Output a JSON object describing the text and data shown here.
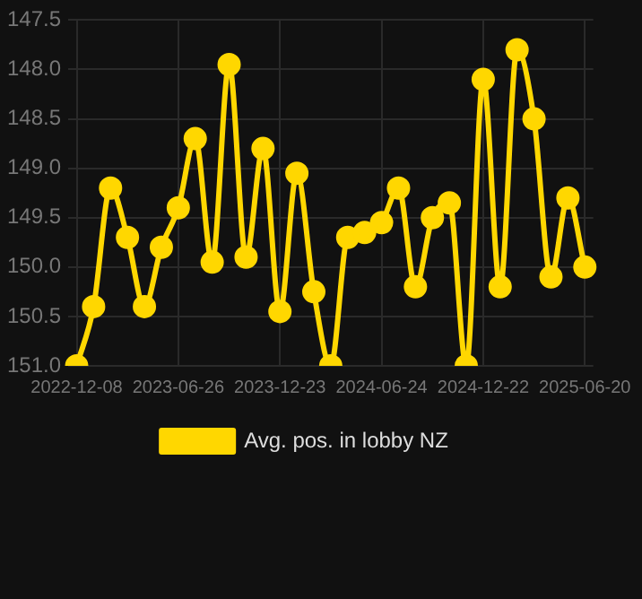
{
  "chart_data": {
    "type": "line",
    "categories": [
      "2022-12-08",
      null,
      null,
      null,
      null,
      null,
      "2023-06-26",
      null,
      null,
      null,
      null,
      null,
      "2023-12-23",
      null,
      null,
      null,
      null,
      null,
      "2024-06-24",
      null,
      null,
      null,
      null,
      null,
      "2024-12-22",
      null,
      null,
      null,
      null,
      null,
      "2025-06-20"
    ],
    "series": [
      {
        "name": "Avg. pos. in lobby NZ",
        "color": "#ffd700",
        "values": [
          151.0,
          150.4,
          149.2,
          149.7,
          150.4,
          149.8,
          149.4,
          148.7,
          149.95,
          147.95,
          149.9,
          148.8,
          150.45,
          149.05,
          150.25,
          151.0,
          149.7,
          149.65,
          149.55,
          149.2,
          150.2,
          149.5,
          149.35,
          151.0,
          148.1,
          150.2,
          147.8,
          148.5,
          150.1,
          149.3,
          150.0
        ]
      }
    ],
    "ylim": [
      151.0,
      147.5
    ],
    "yticks": [
      {
        "value": 147.5,
        "label": "147.5"
      },
      {
        "value": 148,
        "label": "148.0"
      },
      {
        "value": 148.5,
        "label": "148.5"
      },
      {
        "value": 149,
        "label": "149.0"
      },
      {
        "value": 149.5,
        "label": "149.5"
      },
      {
        "value": 150,
        "label": "150.0"
      },
      {
        "value": 150.5,
        "label": "150.5"
      },
      {
        "value": 151,
        "label": "151.0"
      }
    ],
    "grid": true,
    "legend": "bottom",
    "marker": "circle",
    "line_style": "solid"
  }
}
